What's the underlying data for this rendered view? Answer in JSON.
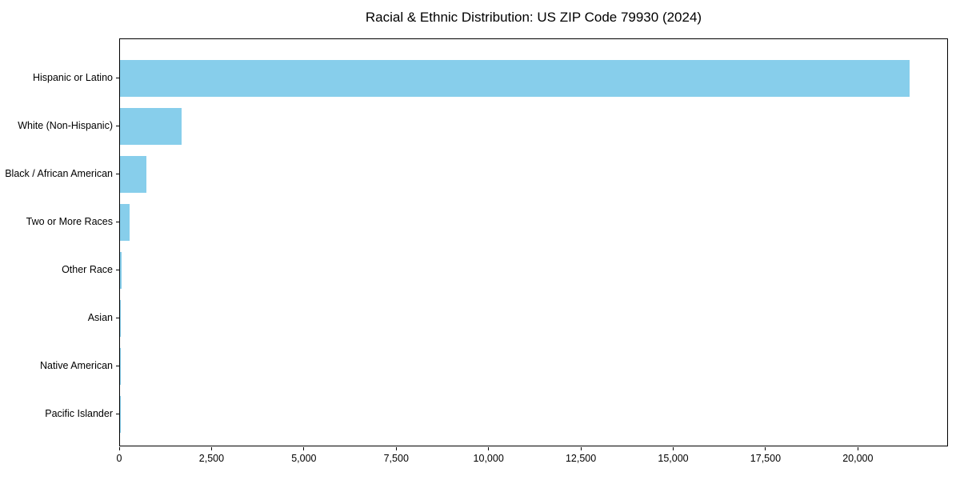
{
  "chart_data": {
    "type": "bar",
    "orientation": "horizontal",
    "title": "Racial & Ethnic Distribution: US ZIP Code 79930 (2024)",
    "categories": [
      "Hispanic or Latino",
      "White (Non-Hispanic)",
      "Black / African American",
      "Two or More Races",
      "Other Race",
      "Asian",
      "Native American",
      "Pacific Islander"
    ],
    "values": [
      21370,
      1660,
      720,
      250,
      40,
      20,
      10,
      4
    ],
    "bar_color": "#87CEEB",
    "xlabel": "",
    "ylabel": "",
    "xlim": [
      0,
      22440
    ],
    "xticks": [
      0,
      2500,
      5000,
      7500,
      10000,
      12500,
      15000,
      17500,
      20000
    ],
    "xtick_labels": [
      "0",
      "2,500",
      "5,000",
      "7,500",
      "10,000",
      "12,500",
      "15,000",
      "17,500",
      "20,000"
    ],
    "grid": false,
    "legend_position": "none"
  }
}
